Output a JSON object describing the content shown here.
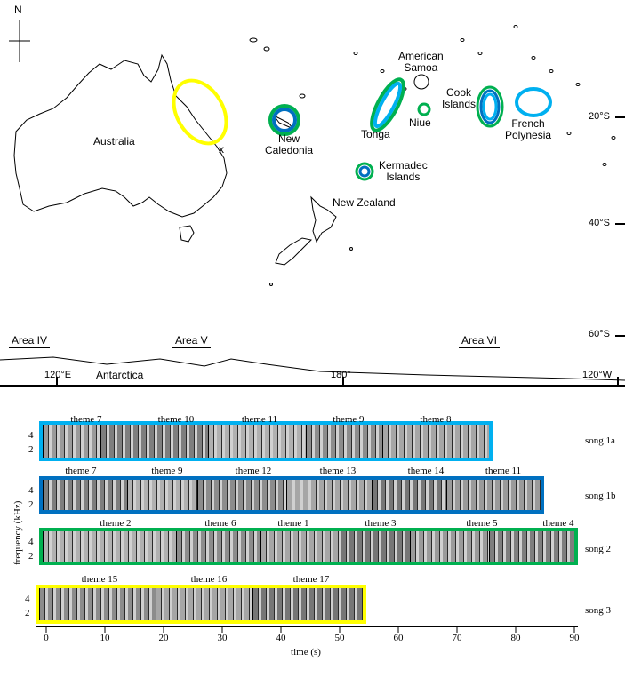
{
  "compass": {
    "north": "N"
  },
  "regions": {
    "australia": "Australia",
    "new_caledonia": [
      "New",
      "Caledonia"
    ],
    "kermadec": [
      "Kermadec",
      "Islands"
    ],
    "new_zealand": "New Zealand",
    "tonga": "Tonga",
    "niue": "Niue",
    "american_samoa": [
      "American",
      "Samoa"
    ],
    "cook": [
      "Cook",
      "Islands"
    ],
    "french_polynesia": [
      "French",
      "Polynesia"
    ],
    "antarctica": "Antarctica",
    "x_marker": "x"
  },
  "areas": [
    "Area IV",
    "Area V",
    "Area VI"
  ],
  "latitudes": [
    "20°S",
    "40°S",
    "60°S"
  ],
  "longitudes": [
    "120°E",
    "180°",
    "120°W"
  ],
  "colors": {
    "song1a": "#00b0f0",
    "song1b": "#0070c0",
    "song2": "#00b050",
    "song3": "#ffff00",
    "samoa_ring": "#000000"
  },
  "songs": [
    {
      "label": "song 1a",
      "themes": [
        "theme 7",
        "theme 10",
        "theme 11",
        "theme 9",
        "theme 8"
      ]
    },
    {
      "label": "song 1b",
      "themes": [
        "theme 7",
        "theme 9",
        "theme 12",
        "theme 13",
        "theme 14",
        "theme 11"
      ]
    },
    {
      "label": "song 2",
      "themes": [
        "theme 2",
        "theme 6",
        "theme 1",
        "theme 3",
        "theme 5",
        "theme 4"
      ]
    },
    {
      "label": "song 3",
      "themes": [
        "theme 15",
        "theme 16",
        "theme 17"
      ]
    }
  ],
  "axis": {
    "xlabel": "time (s)",
    "ylabel": "frequency (kHz)",
    "xticks": [
      "0",
      "10",
      "20",
      "30",
      "40",
      "50",
      "60",
      "70",
      "80",
      "90"
    ],
    "yticks": [
      "4",
      "2"
    ]
  }
}
